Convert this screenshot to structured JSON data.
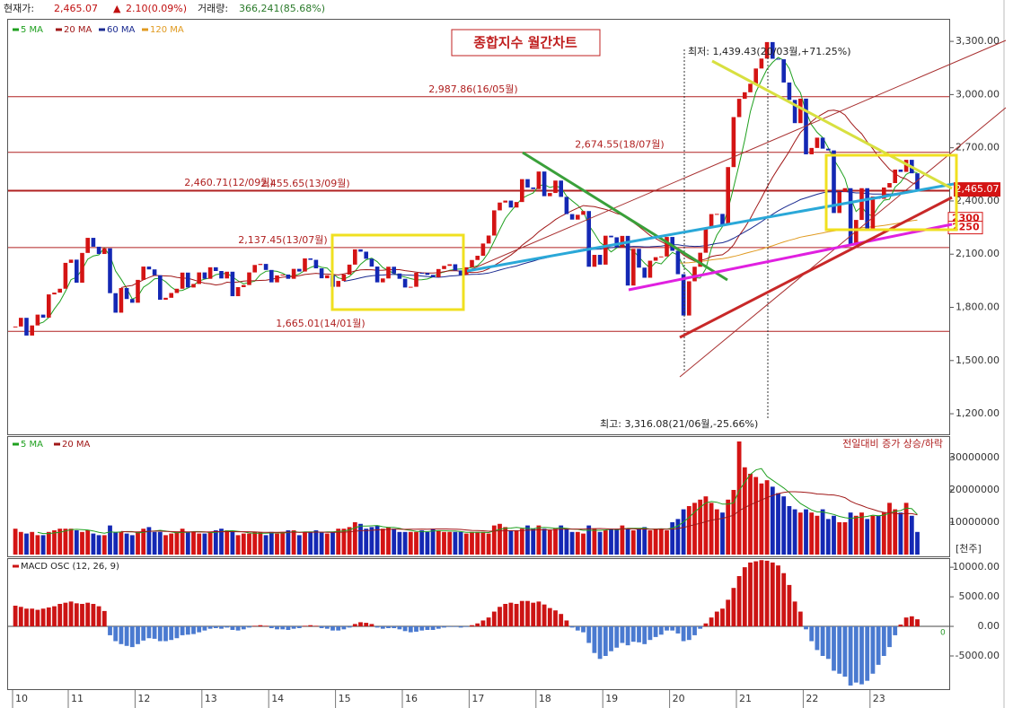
{
  "header": {
    "price_label": "현재가:",
    "price": "2,465.07",
    "change_arrow": "▲",
    "change": "2.10(0.09%)",
    "volume_label": "거래량:",
    "volume": "366,241(85.68%)"
  },
  "chart_data": [
    {
      "type": "candlestick",
      "title": "종합지수 월간차트",
      "values": [
        1692,
        1741,
        1641,
        1698,
        1759,
        1742,
        1873,
        1883,
        1905,
        2051,
        2069,
        1939,
        2107,
        2192,
        2142,
        2101,
        2133,
        1880,
        1770,
        1909,
        1847,
        1826,
        1955,
        2030,
        2014,
        1981,
        1843,
        1854,
        1881,
        1905,
        1996,
        1912,
        1932,
        1997,
        1961,
        2026,
        2005,
        1963,
        2001,
        1863,
        1914,
        1926,
        1997,
        2039,
        2045,
        2011,
        1941,
        1980,
        1985,
        1961,
        2017,
        2002,
        2076,
        2068,
        2020,
        1964,
        1981,
        1916,
        1949,
        1985,
        2041,
        2127,
        2114,
        2074,
        2030,
        1941,
        1963,
        2029,
        1991,
        1961,
        1912,
        1916,
        1995,
        1994,
        1983,
        1970,
        2016,
        2034,
        2043,
        2008,
        1983,
        2026,
        2067,
        2091,
        2160,
        2205,
        2347,
        2391,
        2402,
        2363,
        2394,
        2523,
        2476,
        2467,
        2566,
        2427,
        2445,
        2515,
        2423,
        2326,
        2295,
        2322,
        2343,
        2029,
        2096,
        2041,
        2204,
        2195,
        2140,
        2203,
        1923,
        2130,
        2024,
        1967,
        2063,
        2083,
        2087,
        2197,
        2119,
        1987,
        1754,
        1947,
        2029,
        2108,
        2249,
        2326,
        2327,
        2267,
        2591,
        2873,
        2976,
        3013,
        3061,
        3147,
        3203,
        3296,
        3202,
        3199,
        3068,
        2970,
        2839,
        2977,
        2663,
        2699,
        2757,
        2695,
        2685,
        2332,
        2451,
        2472,
        2155,
        2293,
        2472,
        2236,
        2425,
        2412,
        2476,
        2501,
        2577,
        2564,
        2632,
        2556,
        2465.07
      ],
      "up_color": "#d41414",
      "down_color": "#1428b4",
      "xticks": [
        {
          "value": 0,
          "label": "10"
        },
        {
          "value": 10,
          "label": "11"
        },
        {
          "value": 22,
          "label": "12"
        },
        {
          "value": 34,
          "label": "13"
        },
        {
          "value": 46,
          "label": "14"
        },
        {
          "value": 58,
          "label": "15"
        },
        {
          "value": 70,
          "label": "16"
        },
        {
          "value": 82,
          "label": "17"
        },
        {
          "value": 94,
          "label": "18"
        },
        {
          "value": 106,
          "label": "19"
        },
        {
          "value": 118,
          "label": "20"
        },
        {
          "value": 130,
          "label": "21"
        },
        {
          "value": 142,
          "label": "22"
        },
        {
          "value": 154,
          "label": "23"
        }
      ],
      "ylim": [
        1084,
        3422
      ],
      "yticks": [
        {
          "value": 1200,
          "label": "1,200.00"
        },
        {
          "value": 1500,
          "label": "1,500.00"
        },
        {
          "value": 1800,
          "label": "1,800.00"
        },
        {
          "value": 2100,
          "label": "2,100.00"
        },
        {
          "value": 2400,
          "label": "2,400.00"
        },
        {
          "value": 2700,
          "label": "2,700.00"
        },
        {
          "value": 3000,
          "label": "3,000.00"
        },
        {
          "value": 3300,
          "label": "3,300.00"
        }
      ],
      "moving_averages": [
        {
          "name": "5 MA",
          "color": "#1fa01f",
          "period": 5
        },
        {
          "name": "20 MA",
          "color": "#a01818",
          "period": 20
        },
        {
          "name": "60 MA",
          "color": "#1a2a90",
          "period": 60
        },
        {
          "name": "120 MA",
          "color": "#e09a20",
          "period": 120
        }
      ],
      "hlines": [
        {
          "value": 2987.86,
          "label": "2,987.86(16/05월)"
        },
        {
          "value": 2674.55,
          "label": "2,674.55(18/07월)"
        },
        {
          "value": 2460.71,
          "label": "2,460.71(12/09월)"
        },
        {
          "value": 2455.65,
          "label": "2,455.65(13/09월)"
        },
        {
          "value": 2137.45,
          "label": "2,137.45(13/07월)"
        },
        {
          "value": 1665.01,
          "label": "1,665.01(14/01월)"
        }
      ],
      "annotations": [
        "최저: 1,439.43(20/03월,+71.25%)",
        "최고: 3,316.08(21/06월,-25.66%)"
      ],
      "price_tags": [
        {
          "value": 2465.07,
          "label": "2,465.07"
        },
        2300,
        2250
      ]
    },
    {
      "type": "bar",
      "values": [
        8000000,
        7000000,
        6500000,
        7000000,
        6000000,
        6000000,
        7000000,
        7500000,
        8000000,
        8000000,
        8000000,
        7500000,
        7000000,
        7500000,
        6500000,
        6000000,
        6000000,
        9000000,
        7000000,
        7000000,
        6500000,
        6000000,
        7000000,
        8000000,
        8500000,
        7000000,
        7000000,
        6000000,
        6500000,
        7000000,
        8000000,
        7000000,
        7000000,
        6500000,
        6500000,
        7000000,
        7500000,
        8000000,
        7500000,
        7000000,
        6000000,
        6500000,
        6500000,
        7000000,
        7000000,
        6000000,
        7000000,
        6500000,
        7000000,
        7500000,
        7500000,
        6000000,
        7000000,
        7000000,
        7500000,
        7000000,
        6500000,
        7000000,
        8000000,
        8000000,
        8500000,
        10000000,
        9500000,
        8000000,
        8500000,
        9000000,
        8000000,
        8500000,
        8000000,
        7000000,
        7000000,
        7000000,
        7000000,
        7500000,
        7000000,
        8000000,
        7500000,
        7000000,
        7000000,
        7000000,
        7000000,
        6500000,
        7000000,
        7000000,
        7000000,
        6500000,
        9000000,
        9500000,
        8500000,
        7500000,
        7500000,
        8000000,
        9000000,
        8000000,
        9000000,
        8000000,
        7500000,
        8000000,
        9000000,
        8000000,
        7000000,
        7000000,
        6500000,
        9000000,
        8000000,
        7000000,
        7500000,
        8000000,
        8000000,
        9000000,
        8000000,
        7500000,
        8000000,
        8500000,
        7500000,
        8000000,
        8000000,
        7500000,
        10000000,
        11000000,
        14000000,
        15000000,
        16000000,
        17000000,
        18000000,
        16000000,
        14000000,
        13000000,
        17000000,
        20000000,
        35000000,
        27000000,
        25000000,
        24000000,
        22000000,
        23000000,
        21000000,
        19000000,
        18000000,
        15000000,
        14000000,
        13000000,
        14000000,
        13000000,
        12000000,
        14000000,
        11000000,
        12000000,
        10000000,
        10000000,
        13000000,
        12000000,
        13000000,
        11000000,
        12000000,
        12000000,
        13000000,
        16000000,
        14000000,
        13000000,
        16000000,
        12000000,
        7000000
      ],
      "ylim": [
        0,
        36100000
      ],
      "yticks": [
        10000000,
        20000000,
        30000000
      ],
      "unit_label": "[천주]",
      "legend_text": "전일대비 증가 상승/하락",
      "moving_averages": [
        {
          "name": "5 MA",
          "color": "#1fa01f",
          "period": 5
        },
        {
          "name": "20 MA",
          "color": "#a01818",
          "period": 20
        }
      ]
    },
    {
      "type": "bar",
      "title": "MACD OSC (12, 26, 9)",
      "values": [
        3500,
        3300,
        3000,
        3000,
        2800,
        3000,
        3200,
        3400,
        3800,
        4000,
        4200,
        3900,
        3800,
        4000,
        3800,
        3400,
        2600,
        -1500,
        -2500,
        -3000,
        -3300,
        -3500,
        -3000,
        -2400,
        -2000,
        -2100,
        -2500,
        -2500,
        -2300,
        -2000,
        -1500,
        -1400,
        -1300,
        -1000,
        -700,
        -400,
        -300,
        -400,
        -200,
        -600,
        -700,
        -500,
        -200,
        100,
        200,
        100,
        -300,
        -500,
        -500,
        -600,
        -400,
        -300,
        100,
        200,
        100,
        -300,
        -400,
        -700,
        -700,
        -500,
        -200,
        400,
        700,
        600,
        400,
        -200,
        -400,
        -300,
        -300,
        -500,
        -800,
        -1000,
        -900,
        -700,
        -600,
        -600,
        -400,
        -200,
        -100,
        -100,
        -200,
        -100,
        200,
        500,
        1000,
        1500,
        2500,
        3300,
        3800,
        4000,
        3800,
        4300,
        4300,
        4000,
        4200,
        3700,
        3100,
        2700,
        2100,
        1000,
        -200,
        -700,
        -1000,
        -2800,
        -4500,
        -5500,
        -5000,
        -4200,
        -3600,
        -2800,
        -3200,
        -2600,
        -2700,
        -3000,
        -2300,
        -1800,
        -1400,
        -700,
        -700,
        -1200,
        -2500,
        -2300,
        -1500,
        -400,
        500,
        1500,
        2500,
        3000,
        4500,
        6500,
        8500,
        10000,
        10800,
        11000,
        11200,
        11100,
        10800,
        10300,
        9000,
        7000,
        4200,
        2500,
        -500,
        -2500,
        -4000,
        -5000,
        -5500,
        -7500,
        -8000,
        -8500,
        -10000,
        -9500,
        -9800,
        -9200,
        -8000,
        -6500,
        -5000,
        -3500,
        -1500,
        300,
        1500,
        1700,
        1200
      ],
      "pos_color": "#cc1414",
      "neg_color": "#4a7ad0",
      "ylim": [
        -10615,
        11385
      ],
      "yticks": [
        {
          "value": -5000,
          "label": "-5000.00"
        },
        {
          "value": 0,
          "label": "0.00"
        },
        {
          "value": 5000,
          "label": "5000.00"
        },
        {
          "value": 10000,
          "label": "10000.00"
        }
      ],
      "last_value_tag": 0
    }
  ]
}
